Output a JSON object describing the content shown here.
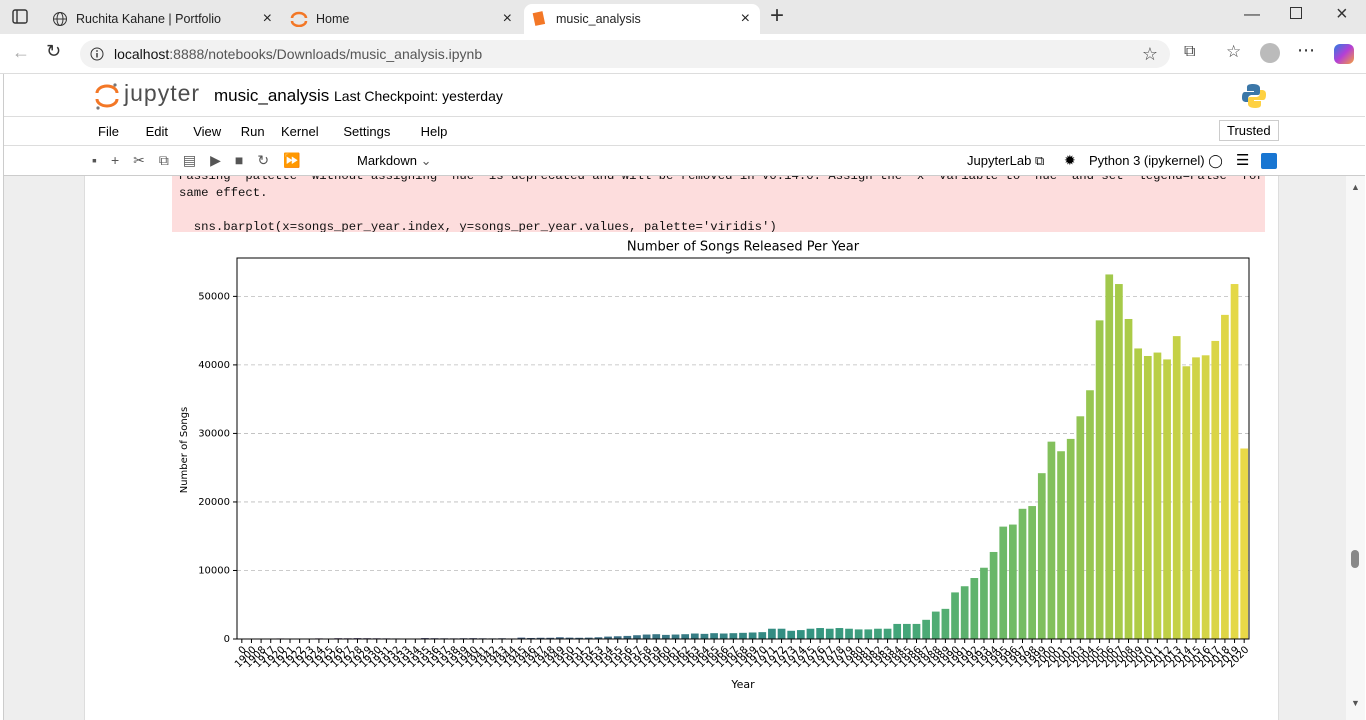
{
  "browser": {
    "tabs": [
      "Ruchita Kahane | Portfolio",
      "Home",
      "music_analysis"
    ],
    "url_host": "localhost",
    "url_rest": ":8888/notebooks/Downloads/music_analysis.ipynb"
  },
  "notebook": {
    "logo": "jupyter",
    "name": "music_analysis",
    "checkpoint": "Last Checkpoint: yesterday",
    "menu": [
      "File",
      "Edit",
      "View",
      "Run",
      "Kernel",
      "Settings",
      "Help"
    ],
    "trusted": "Trusted",
    "cell_type": "Markdown",
    "jupyterlab": "JupyterLab",
    "kernel": "Python 3 (ipykernel)"
  },
  "output": {
    "warning_line1": "Passing `palette` without assigning `hue` is deprecated and will be removed in v0.14.0. Assign the `x` variable to `hue` and set `legend=False` for the",
    "warning_line2": "same effect.",
    "code": "  sns.barplot(x=songs_per_year.index, y=songs_per_year.values, palette='viridis')"
  },
  "chart_data": {
    "type": "bar",
    "title": "Number of Songs Released Per Year",
    "x_label": "Year",
    "y_label": "Number of Songs",
    "palette": "viridis",
    "grid": true,
    "categories": [
      "0",
      "1900",
      "1908",
      "1917",
      "1920",
      "1921",
      "1922",
      "1923",
      "1924",
      "1925",
      "1926",
      "1927",
      "1928",
      "1929",
      "1930",
      "1931",
      "1932",
      "1933",
      "1934",
      "1935",
      "1936",
      "1937",
      "1938",
      "1939",
      "1940",
      "1941",
      "1942",
      "1943",
      "1944",
      "1945",
      "1946",
      "1947",
      "1948",
      "1949",
      "1950",
      "1951",
      "1952",
      "1953",
      "1954",
      "1955",
      "1956",
      "1957",
      "1958",
      "1959",
      "1960",
      "1961",
      "1962",
      "1963",
      "1964",
      "1965",
      "1966",
      "1967",
      "1968",
      "1969",
      "1970",
      "1971",
      "1972",
      "1973",
      "1974",
      "1975",
      "1976",
      "1977",
      "1978",
      "1979",
      "1980",
      "1981",
      "1982",
      "1983",
      "1984",
      "1985",
      "1986",
      "1987",
      "1988",
      "1989",
      "1990",
      "1991",
      "1992",
      "1993",
      "1994",
      "1995",
      "1996",
      "1997",
      "1998",
      "1999",
      "2000",
      "2001",
      "2002",
      "2003",
      "2004",
      "2005",
      "2006",
      "2007",
      "2008",
      "2009",
      "2010",
      "2011",
      "2012",
      "2013",
      "2014",
      "2015",
      "2016",
      "2017",
      "2018",
      "2019",
      "2020"
    ],
    "values": [
      10,
      5,
      5,
      50,
      80,
      30,
      40,
      60,
      90,
      70,
      110,
      100,
      120,
      110,
      100,
      90,
      80,
      70,
      60,
      130,
      110,
      100,
      90,
      110,
      120,
      100,
      90,
      110,
      80,
      200,
      150,
      180,
      180,
      250,
      200,
      180,
      200,
      250,
      350,
      400,
      450,
      550,
      650,
      700,
      600,
      650,
      700,
      800,
      750,
      850,
      800,
      850,
      900,
      950,
      1000,
      1500,
      1500,
      1200,
      1300,
      1500,
      1600,
      1500,
      1600,
      1500,
      1400,
      1400,
      1500,
      1500,
      2200,
      2200,
      2200,
      2800,
      4000,
      4400,
      6800,
      7700,
      8900,
      10400,
      12700,
      16400,
      16700,
      19000,
      19400,
      24200,
      28800,
      27400,
      29200,
      32500,
      36300,
      46500,
      53200,
      51800,
      46700,
      42400,
      41300,
      41800,
      40800,
      44200,
      39800,
      41100,
      41400,
      43500,
      47300,
      51800,
      27800
    ],
    "ylim": [
      0,
      55600
    ],
    "yticks": [
      0,
      10000,
      20000,
      30000,
      40000,
      50000
    ]
  }
}
